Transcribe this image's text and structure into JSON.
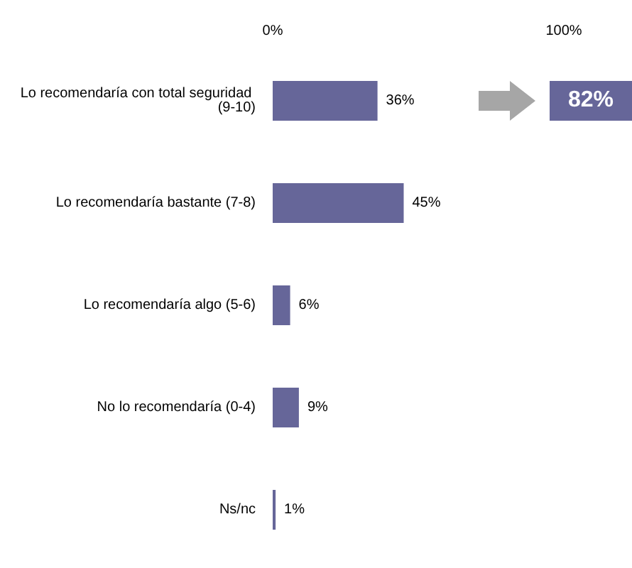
{
  "chart_data": {
    "type": "bar",
    "orientation": "horizontal",
    "categories": [
      "Lo recomendaría con total seguridad (9-10)",
      "Lo recomendaría bastante (7-8)",
      "Lo recomendaría algo (5-6)",
      "No lo recomendaría (0-4)",
      "Ns/nc"
    ],
    "values": [
      36,
      45,
      6,
      9,
      1
    ],
    "color": "#666699",
    "xlim": [
      0,
      100
    ],
    "xticks": [
      {
        "value": 0,
        "label": "0%"
      },
      {
        "value": 100,
        "label": "100%"
      }
    ],
    "value_labels": [
      "36%",
      "45%",
      "6%",
      "9%",
      "1%"
    ],
    "annotations": [
      "82%"
    ],
    "grid": false
  }
}
